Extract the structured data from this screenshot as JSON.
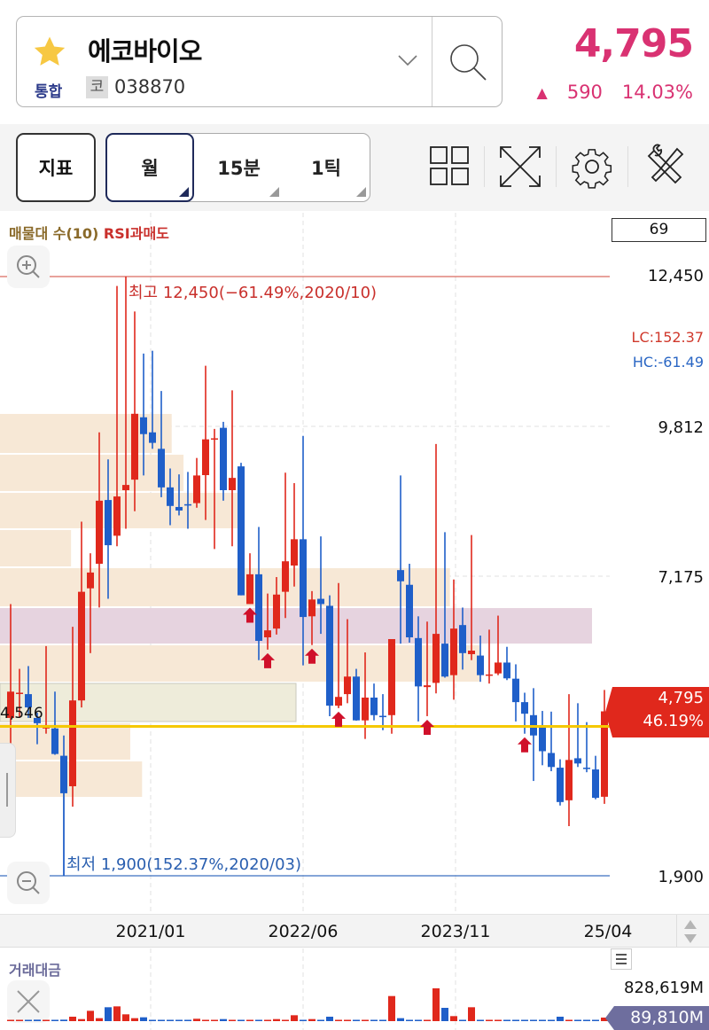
{
  "header": {
    "stock_name": "에코바이오",
    "market": "통합",
    "market_badge": "코",
    "code": "038870",
    "price": "4,795",
    "change_arrow": "▲",
    "change": "590",
    "change_pct": "14.03%",
    "price_color": "#d93272",
    "favorite_icon": "star-icon"
  },
  "toolbar": {
    "indicator_label": "지표",
    "periods": [
      {
        "label": "월",
        "selected": true
      },
      {
        "label": "15분",
        "selected": false
      },
      {
        "label": "1틱",
        "selected": false
      }
    ],
    "icons": [
      "layout-grid-icon",
      "fullscreen-icon",
      "gear-icon",
      "tools-icon"
    ]
  },
  "chart": {
    "legend_volume_profile": "매물대 수(10)",
    "legend_rsi": "RSI과매도",
    "rsi_value": "69",
    "lc_label": "LC:152.37",
    "hc_label": "HC:-61.49",
    "high_label": "최고 12,450(−61.49%,2020/10)",
    "low_label": "최저 1,900(152.37%,2020/03)",
    "profile_line_label": "4,546",
    "current_price": "4,795",
    "current_pct": "46.19%",
    "y_ticks": [
      "12,450",
      "9,812",
      "7,175",
      "1,900"
    ],
    "x_ticks": [
      "2021/01",
      "2022/06",
      "2023/11",
      "25/04"
    ],
    "volume_label": "거래대금",
    "volume_max": "828,619M",
    "volume_current": "89,810M",
    "colors": {
      "up": "#e0281c",
      "down": "#1f5fc9",
      "high_line": "#d0453a",
      "low_line": "#3a6fc0",
      "profile_line": "#f5c800",
      "profile": "#f7e8d6",
      "profile_max": "#e6d3df",
      "profile_current": "#eeecda"
    }
  },
  "chart_data": {
    "type": "candlestick",
    "ylim": [
      1900,
      12450
    ],
    "grid": true,
    "start_month": "2019/09",
    "candles_ohlc": [
      [
        4679,
        6684,
        4216,
        5142
      ],
      [
        5110,
        5543,
        4679,
        5123
      ],
      [
        5098,
        5592,
        4679,
        4864
      ],
      [
        4679,
        4771,
        4216,
        4586
      ],
      [
        4494,
        5944,
        4402,
        4520
      ],
      [
        4494,
        5142,
        4030,
        4044
      ],
      [
        4013,
        4370,
        1900,
        3353
      ],
      [
        3476,
        6283,
        3118,
        4987
      ],
      [
        4987,
        8134,
        4864,
        6900
      ],
      [
        6961,
        7578,
        5820,
        7239
      ],
      [
        7393,
        9707,
        6622,
        8504
      ],
      [
        8516,
        9232,
        6777,
        7720
      ],
      [
        7887,
        12285,
        7702,
        8578
      ],
      [
        8689,
        12450,
        8010,
        8781
      ],
      [
        8874,
        11835,
        8319,
        10034
      ],
      [
        9972,
        11095,
        8948,
        9676
      ],
      [
        9707,
        11144,
        9417,
        9522
      ],
      [
        9417,
        10435,
        8565,
        8738
      ],
      [
        8738,
        9071,
        8072,
        8411
      ],
      [
        8393,
        8967,
        8245,
        8331
      ],
      [
        8442,
        9010,
        8010,
        8418
      ],
      [
        8461,
        9256,
        8380,
        8948
      ],
      [
        8954,
        10879,
        8164,
        9584
      ],
      [
        9590,
        9768,
        7652,
        9602
      ],
      [
        9787,
        9892,
        8504,
        8689
      ],
      [
        8689,
        10447,
        7702,
        8905
      ],
      [
        9108,
        9170,
        6838,
        6838
      ],
      [
        6684,
        7578,
        6684,
        7208
      ],
      [
        7208,
        8041,
        5697,
        6036
      ],
      [
        6098,
        6869,
        5882,
        6221
      ],
      [
        6252,
        7159,
        6147,
        6851
      ],
      [
        6900,
        8997,
        6437,
        7437
      ],
      [
        7362,
        8813,
        6992,
        7825
      ],
      [
        7825,
        9645,
        5604,
        6456
      ],
      [
        6468,
        6912,
        5962,
        6764
      ],
      [
        6776,
        7875,
        6159,
        6684
      ],
      [
        6653,
        6838,
        4710,
        4895
      ],
      [
        4895,
        7054,
        4852,
        5049
      ],
      [
        5098,
        6418,
        4938,
        5407
      ],
      [
        5407,
        5543,
        4630,
        4636
      ],
      [
        4636,
        5833,
        4309,
        5037
      ],
      [
        5037,
        5284,
        4636,
        4728
      ],
      [
        4716,
        5098,
        4463,
        4710
      ],
      [
        4728,
        6067,
        4401,
        6067
      ],
      [
        7282,
        8948,
        5987,
        7085
      ],
      [
        7023,
        7393,
        6005,
        6098
      ],
      [
        6085,
        6468,
        4617,
        5234
      ],
      [
        5222,
        6375,
        4710,
        5253
      ],
      [
        5296,
        9503,
        5111,
        6159
      ],
      [
        5987,
        7949,
        5388,
        5407
      ],
      [
        5432,
        7116,
        4999,
        6252
      ],
      [
        6314,
        6622,
        5530,
        5820
      ],
      [
        5802,
        7899,
        5697,
        5864
      ],
      [
        5777,
        6129,
        5315,
        5432
      ],
      [
        5438,
        6233,
        5284,
        5444
      ],
      [
        5463,
        6480,
        5432,
        5654
      ],
      [
        5654,
        5931,
        5345,
        5376
      ],
      [
        5370,
        5623,
        4617,
        4957
      ],
      [
        4957,
        5123,
        4401,
        4753
      ],
      [
        4728,
        5203,
        3569,
        4370
      ],
      [
        4506,
        4802,
        3846,
        4093
      ],
      [
        4062,
        4790,
        3741,
        3815
      ],
      [
        3803,
        3951,
        3137,
        3198
      ],
      [
        3229,
        5098,
        2774,
        3939
      ],
      [
        3969,
        4938,
        3815,
        3877
      ],
      [
        3803,
        4605,
        3723,
        3797
      ],
      [
        3772,
        4012,
        3247,
        3272
      ],
      [
        3291,
        5172,
        3167,
        4795
      ]
    ],
    "volume_M": [
      20000,
      20000,
      20000,
      37000,
      20000,
      20000,
      37000,
      112000,
      52000,
      261000,
      75000,
      351000,
      373000,
      172000,
      75000,
      97000,
      20000,
      20000,
      20000,
      20000,
      20000,
      60000,
      20000,
      20000,
      52000,
      20000,
      20000,
      20000,
      20000,
      20000,
      52000,
      20000,
      149000,
      20000,
      52000,
      20000,
      112000,
      20000,
      20000,
      20000,
      20000,
      20000,
      20000,
      634000,
      75000,
      20000,
      20000,
      20000,
      828619,
      336000,
      127000,
      20000,
      351000,
      20000,
      20000,
      20000,
      20000,
      20000,
      20000,
      20000,
      20000,
      20000,
      112000,
      20000,
      20000,
      20000,
      20000,
      89810
    ],
    "volume_profile": [
      {
        "low": 9329,
        "high": 10047,
        "rel": 0.29
      },
      {
        "low": 8657,
        "high": 9329,
        "rel": 0.31
      },
      {
        "low": 8002,
        "high": 8657,
        "rel": 0.41
      },
      {
        "low": 7331,
        "high": 8002,
        "rel": 0.12
      },
      {
        "low": 6629,
        "high": 7331,
        "rel": 0.76
      },
      {
        "low": 5973,
        "high": 6629,
        "rel": 1.0,
        "highlight": "max"
      },
      {
        "low": 5302,
        "high": 5973,
        "rel": 0.81
      },
      {
        "low": 4600,
        "high": 5302,
        "rel": 0.5,
        "highlight": "current"
      },
      {
        "low": 3929,
        "high": 4600,
        "rel": 0.22
      },
      {
        "low": 3273,
        "high": 3929,
        "rel": 0.24
      }
    ],
    "profile_line": 4546,
    "rsi_oversold_signals": [
      "2021/12",
      "2022/02",
      "2022/07",
      "2022/10",
      "2023/08",
      "2024/07"
    ]
  }
}
